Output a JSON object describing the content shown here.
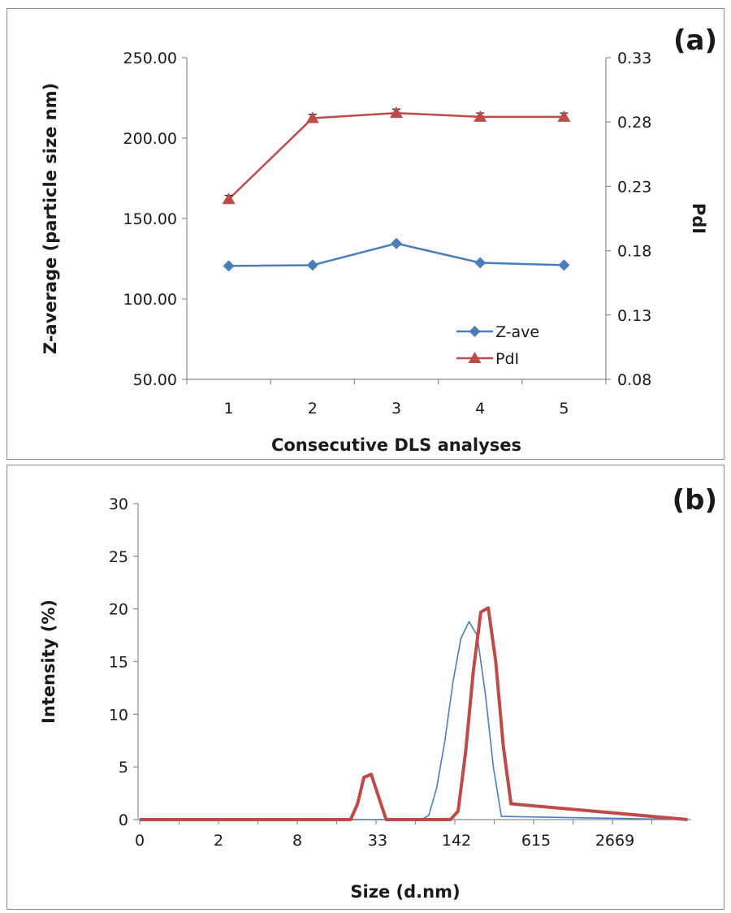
{
  "chart_data": [
    {
      "panel_label": "(a)",
      "type": "line",
      "xlabel": "Consecutive DLS analyses",
      "ylabel": "Z-average (particle size nm)",
      "y2label": "PdI",
      "categories": [
        "1",
        "2",
        "3",
        "4",
        "5"
      ],
      "ylim": [
        50,
        250
      ],
      "yticks": [
        "50.00",
        "100.00",
        "150.00",
        "200.00",
        "250.00"
      ],
      "y2lim": [
        0.08,
        0.33
      ],
      "y2ticks": [
        "0.08",
        "0.13",
        "0.18",
        "0.23",
        "0.28",
        "0.33"
      ],
      "legend_position": "bottom-right",
      "grid": false,
      "series": [
        {
          "name": "Z-ave",
          "axis": "left",
          "color": "#4a7ebb",
          "marker": "diamond",
          "values": [
            120.5,
            121.0,
            134.5,
            122.5,
            121.0
          ]
        },
        {
          "name": "PdI",
          "axis": "right",
          "color": "#be4b48",
          "marker": "triangle",
          "values": [
            0.22,
            0.283,
            0.287,
            0.284,
            0.284
          ],
          "error": [
            0.003,
            0.003,
            0.003,
            0.003,
            0.003
          ]
        }
      ]
    },
    {
      "panel_label": "(b)",
      "type": "line",
      "xlabel": "Size (d.nm)",
      "ylabel": "Intensity (%)",
      "ylim": [
        0,
        30
      ],
      "yticks": [
        "0",
        "5",
        "10",
        "15",
        "20",
        "25",
        "30"
      ],
      "xscale": "log",
      "xticks": [
        "0",
        "2",
        "8",
        "33",
        "142",
        "615",
        "2669"
      ],
      "grid": false,
      "series": [
        {
          "color": "#4a7ebb",
          "width": "thin",
          "x": [
            0.4,
            50,
            80,
            91,
            105,
            122,
            141,
            163,
            189,
            219,
            254,
            294,
            340,
            10000
          ],
          "values": [
            0,
            0,
            0,
            0.4,
            3.0,
            7.5,
            13.0,
            17.2,
            18.8,
            17.5,
            12.0,
            5.0,
            0.3,
            0
          ]
        },
        {
          "color": "#be4b48",
          "width": "thick",
          "x": [
            0.4,
            22,
            25,
            28,
            32,
            37,
            42,
            135,
            155,
            178,
            204,
            234,
            268,
            307,
            352,
            405,
            10000
          ],
          "values": [
            0,
            0,
            1.5,
            4.0,
            4.3,
            2.0,
            0,
            0,
            0.8,
            6.5,
            14.0,
            19.7,
            20.1,
            15.0,
            7.0,
            1.5,
            0
          ]
        }
      ]
    }
  ]
}
